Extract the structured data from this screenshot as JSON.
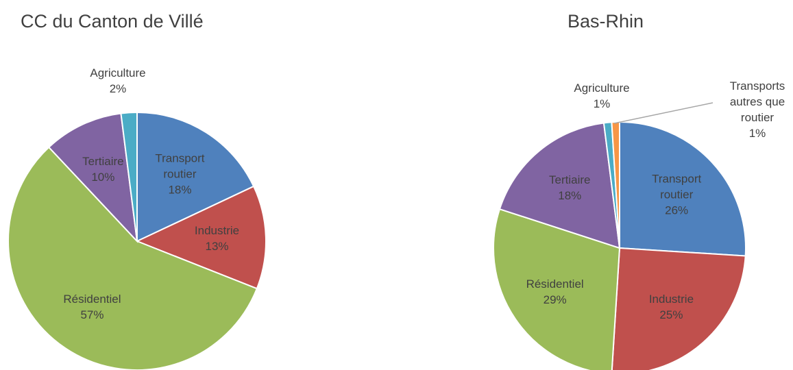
{
  "chart_data": [
    {
      "type": "pie",
      "title": "CC du Canton de Villé",
      "categories": [
        "Transport routier",
        "Industrie",
        "Résidentiel",
        "Tertiaire",
        "Agriculture"
      ],
      "values": [
        18,
        13,
        57,
        10,
        2
      ],
      "value_labels": [
        "18%",
        "13%",
        "57%",
        "10%",
        "2%"
      ],
      "colors": [
        "#4f81bd",
        "#c0504d",
        "#9bbb59",
        "#8064a2",
        "#4bacc6"
      ]
    },
    {
      "type": "pie",
      "title": "Bas-Rhin",
      "categories": [
        "Transport routier",
        "Industrie",
        "Résidentiel",
        "Tertiaire",
        "Agriculture",
        "Transports autres que routier"
      ],
      "values": [
        26,
        25,
        29,
        18,
        1,
        1
      ],
      "value_labels": [
        "26%",
        "25%",
        "29%",
        "18%",
        "1%",
        "1%"
      ],
      "colors": [
        "#4f81bd",
        "#c0504d",
        "#9bbb59",
        "#8064a2",
        "#4bacc6",
        "#f79646"
      ]
    }
  ]
}
